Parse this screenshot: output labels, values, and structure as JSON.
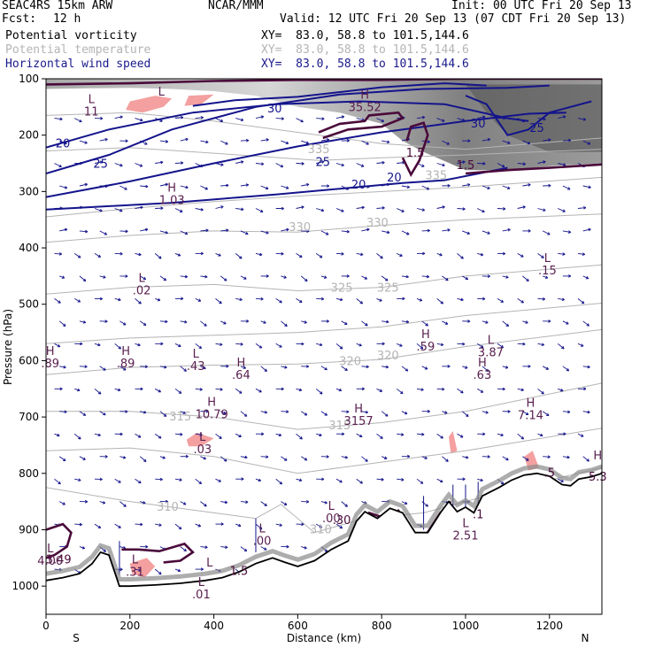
{
  "header": {
    "model": "SEAC4RS 15km ARW",
    "org": "NCAR/MMM",
    "init": "Init: 00 UTC Fri 20 Sep 13",
    "fcst_label": "Fcst:",
    "fcst_value": "12 h",
    "valid": "Valid: 12 UTC Fri 20 Sep 13 (07 CDT Fri 20 Sep 13)",
    "fields": [
      {
        "name": "Potential vorticity",
        "xy": "XY=  83.0, 58.8 to 101.5,144.6",
        "color": "#000000"
      },
      {
        "name": "Potential temperature",
        "xy": "XY=  83.0, 58.8 to 101.5,144.6",
        "color": "#b4b4b4"
      },
      {
        "name": "Horizontal wind speed",
        "xy": "XY=  83.0, 58.8 to 101.5,144.6",
        "color": "#1a1a8c"
      }
    ]
  },
  "chart_data": {
    "type": "cross-section",
    "ylabel": "Pressure (hPa)",
    "xlabel": "Distance (km)",
    "xlim": [
      0,
      1325
    ],
    "ylim": [
      1050,
      100
    ],
    "x_ticks": [
      "0",
      "200",
      "400",
      "600",
      "800",
      "1000",
      "1200"
    ],
    "x_tick_values": [
      0,
      200,
      400,
      600,
      800,
      1000,
      1200
    ],
    "y_ticks": [
      "100",
      "200",
      "300",
      "400",
      "500",
      "600",
      "700",
      "800",
      "900",
      "1000"
    ],
    "y_tick_values": [
      100,
      200,
      300,
      400,
      500,
      600,
      700,
      800,
      900,
      1000
    ],
    "left_end": "S",
    "right_end": "N",
    "colors": {
      "theta": "#b4b4b4",
      "wind": "#14148c",
      "pv": "#4a0a3a",
      "pv_shade": "#f4a0a0",
      "text_pv": "#5a2050"
    },
    "theta_labels": [
      {
        "text": "335",
        "x": 650,
        "p": 232
      },
      {
        "text": "330",
        "x": 605,
        "p": 370
      },
      {
        "text": "330",
        "x": 790,
        "p": 362
      },
      {
        "text": "325",
        "x": 705,
        "p": 478
      },
      {
        "text": "325",
        "x": 815,
        "p": 478
      },
      {
        "text": "320",
        "x": 725,
        "p": 608
      },
      {
        "text": "320",
        "x": 815,
        "p": 598
      },
      {
        "text": "315",
        "x": 320,
        "p": 706
      },
      {
        "text": "315",
        "x": 700,
        "p": 722
      },
      {
        "text": "310",
        "x": 290,
        "p": 866
      },
      {
        "text": "310",
        "x": 655,
        "p": 906
      },
      {
        "text": "335",
        "x": 930,
        "p": 278
      }
    ],
    "wind_labels": [
      {
        "text": "30",
        "x": 545,
        "p": 160
      },
      {
        "text": "30",
        "x": 1030,
        "p": 186
      },
      {
        "text": "25",
        "x": 1170,
        "p": 194
      },
      {
        "text": "25",
        "x": 130,
        "p": 258
      },
      {
        "text": "25",
        "x": 660,
        "p": 255
      },
      {
        "text": "20",
        "x": 40,
        "p": 222
      },
      {
        "text": "20",
        "x": 745,
        "p": 295
      },
      {
        "text": "20",
        "x": 830,
        "p": 282
      }
    ],
    "extrema": [
      {
        "kind": "L",
        "value": "11",
        "x": 108,
        "p": 143
      },
      {
        "kind": "L",
        "value": "",
        "x": 275,
        "p": 130
      },
      {
        "kind": "H",
        "value": "35.52",
        "x": 760,
        "p": 135
      },
      {
        "kind": "H",
        "value": "1.03",
        "x": 300,
        "p": 300
      },
      {
        "kind": "L",
        "value": ".02",
        "x": 228,
        "p": 460
      },
      {
        "kind": "L",
        "value": ".15",
        "x": 1195,
        "p": 425
      },
      {
        "kind": "H",
        "value": ".59",
        "x": 905,
        "p": 560
      },
      {
        "kind": "L",
        "value": "3.87",
        "x": 1060,
        "p": 570
      },
      {
        "kind": "H",
        "value": ".89",
        "x": 10,
        "p": 590
      },
      {
        "kind": "H",
        "value": ".89",
        "x": 190,
        "p": 590
      },
      {
        "kind": "L",
        "value": ".43",
        "x": 357,
        "p": 595
      },
      {
        "kind": "H",
        "value": ".64",
        "x": 465,
        "p": 610
      },
      {
        "kind": "H",
        "value": ".63",
        "x": 1040,
        "p": 610
      },
      {
        "kind": "H",
        "value": "10.79",
        "x": 395,
        "p": 680
      },
      {
        "kind": "H",
        "value": "3157",
        "x": 745,
        "p": 692
      },
      {
        "kind": "H",
        "value": "7.14",
        "x": 1155,
        "p": 682
      },
      {
        "kind": "L",
        "value": ".03",
        "x": 373,
        "p": 742
      },
      {
        "kind": "L",
        "value": ".00",
        "x": 680,
        "p": 865
      },
      {
        "kind": "L",
        "value": "2.51",
        "x": 1000,
        "p": 895
      },
      {
        "kind": "L",
        "value": ".00",
        "x": 515,
        "p": 905
      },
      {
        "kind": "L",
        "value": "4.00",
        "x": 10,
        "p": 940
      },
      {
        "kind": "L",
        "value": ".31",
        "x": 212,
        "p": 960
      },
      {
        "kind": "L",
        "value": "",
        "x": 390,
        "p": 965
      },
      {
        "kind": "L",
        "value": ".01",
        "x": 370,
        "p": 1000
      },
      {
        "kind": "H",
        "value": "",
        "x": 1315,
        "p": 775
      }
    ],
    "pv_labels": [
      {
        "text": "1.5",
        "x": 880,
        "p": 238
      },
      {
        "text": "1.5",
        "x": 1000,
        "p": 260
      },
      {
        "text": "1.5",
        "x": 460,
        "p": 980
      },
      {
        "text": ".30",
        "x": 705,
        "p": 890
      },
      {
        "text": "3.49",
        "x": 30,
        "p": 960
      },
      {
        "text": ".1",
        "x": 1030,
        "p": 880
      },
      {
        "text": "5.3",
        "x": 1315,
        "p": 813
      },
      {
        "text": ".5",
        "x": 1200,
        "p": 806
      }
    ],
    "terrain_top": [
      [
        0,
        990
      ],
      [
        40,
        985
      ],
      [
        80,
        978
      ],
      [
        110,
        960
      ],
      [
        130,
        940
      ],
      [
        150,
        945
      ],
      [
        175,
        1000
      ],
      [
        200,
        1000
      ],
      [
        260,
        998
      ],
      [
        320,
        995
      ],
      [
        380,
        990
      ],
      [
        420,
        985
      ],
      [
        460,
        975
      ],
      [
        500,
        960
      ],
      [
        540,
        950
      ],
      [
        570,
        958
      ],
      [
        600,
        965
      ],
      [
        640,
        955
      ],
      [
        680,
        935
      ],
      [
        720,
        920
      ],
      [
        740,
        885
      ],
      [
        760,
        868
      ],
      [
        790,
        880
      ],
      [
        820,
        862
      ],
      [
        850,
        870
      ],
      [
        880,
        905
      ],
      [
        910,
        905
      ],
      [
        940,
        870
      ],
      [
        960,
        850
      ],
      [
        980,
        868
      ],
      [
        1000,
        860
      ],
      [
        1020,
        870
      ],
      [
        1040,
        840
      ],
      [
        1080,
        825
      ],
      [
        1110,
        812
      ],
      [
        1140,
        803
      ],
      [
        1170,
        800
      ],
      [
        1200,
        805
      ],
      [
        1230,
        820
      ],
      [
        1250,
        822
      ],
      [
        1270,
        810
      ],
      [
        1300,
        806
      ],
      [
        1325,
        800
      ]
    ]
  }
}
